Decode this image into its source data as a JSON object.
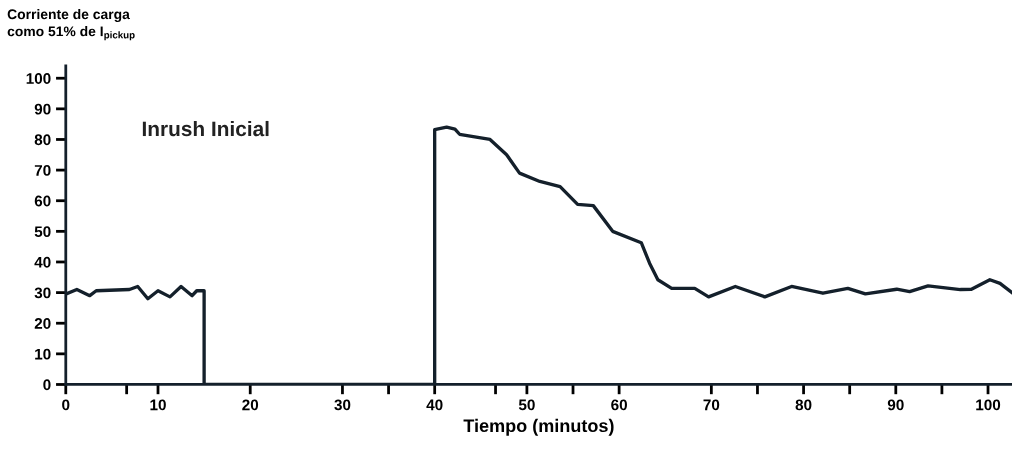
{
  "chart_data": {
    "type": "line",
    "xlabel": "Tiempo (minutos)",
    "ylabel": "Corriente de carga\ncomo 51% de I$_{pickup}$",
    "annotations": [
      "Inrush Inicial"
    ],
    "series": [
      {
        "color": "#14202b",
        "x": [
          0,
          1.2,
          2.6,
          3.3,
          6.9,
          7.8,
          8.9,
          10,
          11.3,
          12.5,
          13.7,
          14.2,
          15,
          15,
          40,
          40,
          41.3,
          42.2,
          42.7,
          46,
          47.8,
          49.2,
          51.4,
          53.6,
          55.5,
          57.2,
          59.3,
          62.4,
          63.3,
          64.2,
          65.7,
          68.2,
          69.7,
          72.6,
          75.8,
          78.7,
          82.1,
          84.8,
          86.7,
          90.1,
          91.5,
          93.5,
          97,
          98.2,
          100.2,
          101.3,
          102.6
        ],
        "values": [
          29.5,
          31,
          29,
          30.6,
          31,
          32,
          28,
          30.6,
          28.6,
          32,
          29,
          30.6,
          30.6,
          0,
          0,
          83.2,
          84,
          83.4,
          81.7,
          80,
          75,
          69,
          66.3,
          64.6,
          58.8,
          58.4,
          50,
          46.3,
          39.6,
          34.2,
          31.4,
          31.4,
          28.6,
          32,
          28.6,
          32,
          29.8,
          31.4,
          29.6,
          31.1,
          30.3,
          32.2,
          31,
          31.1,
          34.2,
          33,
          30
        ]
      }
    ],
    "xlim": [
      0,
      102.6
    ],
    "ylim": [
      0,
      104
    ],
    "xticks": [
      0,
      {
        "value": 6.6,
        "label": null
      },
      10,
      20,
      {
        "value": 35,
        "label": null
      },
      30,
      40,
      {
        "value": 46.6,
        "label": null
      },
      50,
      {
        "value": 55,
        "label": null
      },
      60,
      70,
      {
        "value": 75,
        "label": null
      },
      80,
      {
        "value": 85,
        "label": null
      },
      90,
      {
        "value": 95,
        "label": null
      },
      100
    ],
    "yticks": [
      0,
      10,
      20,
      30,
      40,
      50,
      60,
      70,
      80,
      90,
      100
    ],
    "grid": false,
    "legend": false,
    "marker": "none",
    "line_style": "solid"
  }
}
